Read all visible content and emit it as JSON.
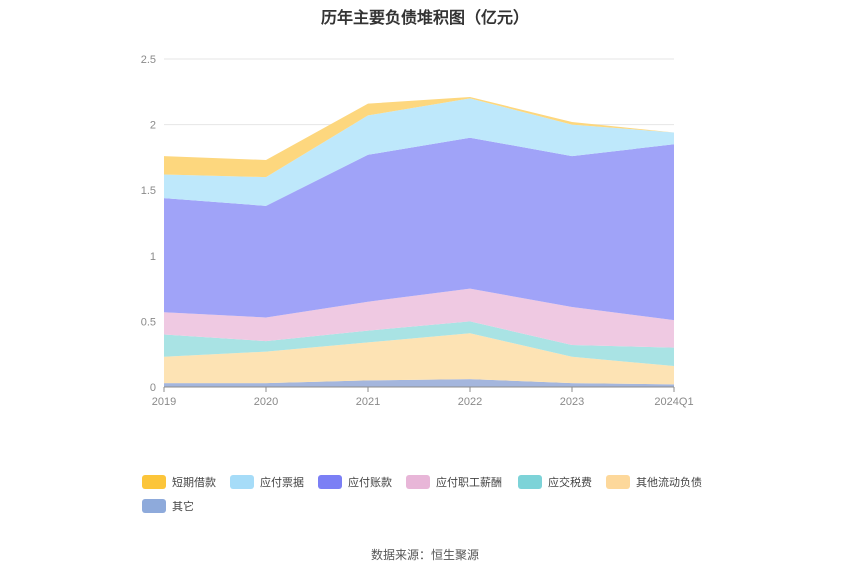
{
  "chart_data": {
    "type": "area",
    "stacked": true,
    "title": "历年主要负债堆积图（亿元）",
    "categories": [
      "2019",
      "2020",
      "2021",
      "2022",
      "2023",
      "2024Q1"
    ],
    "ylim": [
      0,
      2.5
    ],
    "yticks": [
      "0",
      "0.5",
      "1",
      "1.5",
      "2",
      "2.5"
    ],
    "grid": true,
    "legend_position": "bottom",
    "series": [
      {
        "name": "其它",
        "color": "#a4b6dd",
        "legend_color": "#8eaadb",
        "values": [
          0.03,
          0.03,
          0.05,
          0.06,
          0.03,
          0.02
        ]
      },
      {
        "name": "其他流动负债",
        "color": "#fde3b4",
        "legend_color": "#fdd89b",
        "values": [
          0.2,
          0.24,
          0.29,
          0.35,
          0.2,
          0.14
        ]
      },
      {
        "name": "应交税费",
        "color": "#a9e3e4",
        "legend_color": "#7dd3d8",
        "values": [
          0.17,
          0.08,
          0.09,
          0.09,
          0.09,
          0.14
        ]
      },
      {
        "name": "应付职工薪酬",
        "color": "#efc9e2",
        "legend_color": "#e8b6d8",
        "values": [
          0.17,
          0.18,
          0.22,
          0.25,
          0.29,
          0.21
        ]
      },
      {
        "name": "应付账款",
        "color": "#a0a3f8",
        "legend_color": "#7b7ff5",
        "values": [
          0.87,
          0.85,
          1.12,
          1.15,
          1.15,
          1.34
        ]
      },
      {
        "name": "应付票据",
        "color": "#bee8fb",
        "legend_color": "#a6dcf8",
        "values": [
          0.18,
          0.22,
          0.3,
          0.3,
          0.24,
          0.09
        ]
      },
      {
        "name": "短期借款",
        "color": "#fdd77e",
        "legend_color": "#fcc53a",
        "values": [
          0.14,
          0.13,
          0.09,
          0.01,
          0.02,
          0.0
        ]
      }
    ],
    "legend_order": [
      "短期借款",
      "应付票据",
      "应付账款",
      "应付职工薪酬",
      "应交税费",
      "其他流动负债",
      "其它"
    ]
  },
  "source": "数据来源：恒生聚源"
}
